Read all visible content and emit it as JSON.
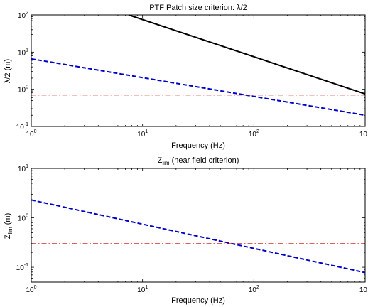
{
  "chart_data": [
    {
      "type": "line",
      "title": "PTF Patch size criterion: λ/2",
      "title_sub": "",
      "xlabel": "Frequency (Hz)",
      "ylabel": "λ/2 (m)",
      "ylabel_sub": "",
      "xscale": "log",
      "yscale": "log",
      "xlim": [
        1,
        1000
      ],
      "ylim": [
        0.1,
        100
      ],
      "grid": false,
      "x_ticks": [
        {
          "base": "10",
          "exp": "0"
        },
        {
          "base": "10",
          "exp": "1"
        },
        {
          "base": "10",
          "exp": "2"
        },
        {
          "base": "10",
          "exp": "3",
          "display": "10"
        }
      ],
      "y_ticks": [
        {
          "base": "10",
          "exp": "-1"
        },
        {
          "base": "10",
          "exp": "0"
        },
        {
          "base": "10",
          "exp": "1"
        },
        {
          "base": "10",
          "exp": "2"
        }
      ],
      "series": [
        {
          "color": "#000000",
          "style": "solid",
          "x": [
            7.5,
            1000
          ],
          "y": [
            100,
            0.75
          ]
        },
        {
          "color": "#0000cc",
          "style": "dashed",
          "x": [
            1,
            1000
          ],
          "y": [
            6.6,
            0.2
          ]
        },
        {
          "color": "#cc0000",
          "style": "dashdot",
          "x": [
            1,
            1000
          ],
          "y": [
            0.7,
            0.7
          ]
        }
      ]
    },
    {
      "type": "line",
      "title": "Z",
      "title_sub": "lim",
      "title_rest": " (near field criterion)",
      "xlabel": "Frequency (Hz)",
      "ylabel": "Z",
      "ylabel_sub": "lim",
      "ylabel_rest": " (m)",
      "xscale": "log",
      "yscale": "log",
      "xlim": [
        1,
        1000
      ],
      "ylim": [
        0.05,
        10
      ],
      "grid": false,
      "x_ticks": [
        {
          "base": "10",
          "exp": "0"
        },
        {
          "base": "10",
          "exp": "1"
        },
        {
          "base": "10",
          "exp": "2"
        },
        {
          "base": "10",
          "exp": "3",
          "display": "10"
        }
      ],
      "y_ticks": [
        {
          "base": "10",
          "exp": "-1"
        },
        {
          "base": "10",
          "exp": "0"
        },
        {
          "base": "10",
          "exp": "1"
        }
      ],
      "series": [
        {
          "color": "#0000cc",
          "style": "dashed",
          "x": [
            1,
            1000
          ],
          "y": [
            2.3,
            0.078
          ]
        },
        {
          "color": "#cc0000",
          "style": "dashdot",
          "x": [
            1,
            1000
          ],
          "y": [
            0.3,
            0.3
          ]
        }
      ]
    }
  ]
}
